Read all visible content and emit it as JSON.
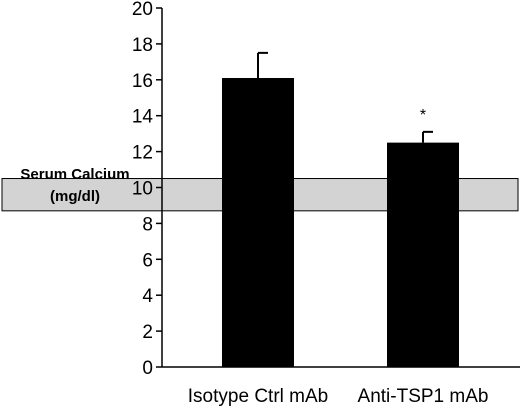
{
  "chart_data": {
    "type": "bar",
    "categories": [
      "Isotype Ctrl mAb",
      "Anti-TSP1 mAb"
    ],
    "values": [
      16.1,
      12.5
    ],
    "errors": [
      1.4,
      0.6
    ],
    "annotations": [
      "",
      "*"
    ],
    "ylabel": [
      "Serum Calcium",
      "(mg/dl)"
    ],
    "ylim": [
      0,
      20
    ],
    "yticks": [
      "0",
      "2",
      "4",
      "6",
      "8",
      "10",
      "12",
      "14",
      "16",
      "18",
      "20"
    ],
    "reference_band": [
      8.7,
      10.5
    ],
    "bar_color": "#000000",
    "band_color": "#d3d3d3",
    "grid": false
  }
}
